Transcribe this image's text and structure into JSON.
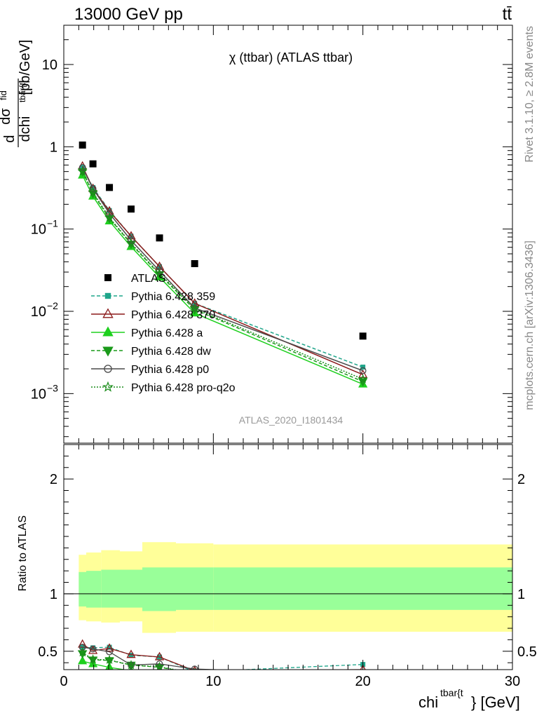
{
  "header": {
    "left": "13000 GeV pp",
    "right": "tt̄"
  },
  "side_labels": {
    "rivet": "Rivet 3.1.10, ≥ 2.8M events",
    "mcplots": "mcplots.cern.ch [arXiv:1306.3436]"
  },
  "chart_data": {
    "type": "scatter",
    "title": "χ (ttbar) (ATLAS ttbar)",
    "analysis": "ATLAS_2020_I1801434",
    "xlabel": {
      "main": "chi",
      "sup": "tbar{t",
      "tail": "} [GeV]"
    },
    "ylabel": {
      "prefix": "d",
      "num": "dσ",
      "num_sup": "fid",
      "den": "dchi",
      "den_sup": "tbar{t}",
      "unit": "[pb/GeV]"
    },
    "ratio_ylabel": "Ratio to ATLAS",
    "xlim": [
      0,
      30
    ],
    "ylim": [
      0.00025,
      30
    ],
    "yscale": "log",
    "ratio_ylim": [
      0.34,
      2.3
    ],
    "x_ticks": [
      {
        "value": 0,
        "label": "0"
      },
      {
        "value": 10,
        "label": "10"
      },
      {
        "value": 20,
        "label": "20"
      },
      {
        "value": 30,
        "label": "30"
      }
    ],
    "y_ticks": [
      {
        "value": 10,
        "label": "10",
        "sup": ""
      },
      {
        "value": 1,
        "label": "1",
        "sup": ""
      },
      {
        "value": 0.1,
        "label": "10",
        "sup": "−1"
      },
      {
        "value": 0.01,
        "label": "10",
        "sup": "−2"
      },
      {
        "value": 0.001,
        "label": "10",
        "sup": "−3"
      }
    ],
    "ratio_ticks": [
      {
        "value": 0.5,
        "label": "0.5"
      },
      {
        "value": 1,
        "label": "1"
      },
      {
        "value": 2,
        "label": "2"
      }
    ],
    "data": {
      "name": "ATLAS",
      "color": "#000000",
      "x": [
        1.25,
        1.95,
        3.05,
        4.5,
        6.4,
        8.75,
        20
      ],
      "y": [
        1.05,
        0.62,
        0.32,
        0.175,
        0.078,
        0.038,
        0.005
      ]
    },
    "bands": {
      "edges": [
        1,
        1.5,
        2.5,
        3.75,
        5.25,
        7.5,
        10,
        30
      ],
      "total_lo": [
        0.77,
        0.76,
        0.75,
        0.76,
        0.66,
        0.67,
        0.67
      ],
      "total_hi": [
        1.34,
        1.36,
        1.38,
        1.37,
        1.45,
        1.44,
        1.43
      ],
      "stat_lo": [
        0.89,
        0.88,
        0.88,
        0.88,
        0.85,
        0.86,
        0.86
      ],
      "stat_hi": [
        1.19,
        1.2,
        1.21,
        1.21,
        1.23,
        1.23,
        1.23
      ],
      "total_color": "#ffff99",
      "stat_color": "#99ff99"
    },
    "series": [
      {
        "name": "Pythia 6.428 359",
        "color": "#1fa58a",
        "dash": "5,3",
        "marker": "square",
        "x": [
          1.25,
          1.95,
          3.05,
          4.5,
          6.4,
          8.75,
          20
        ],
        "y": [
          0.56,
          0.32,
          0.168,
          0.082,
          0.035,
          0.0125,
          0.0021
        ],
        "ratio": [
          0.535,
          0.53,
          0.535,
          0.465,
          0.45,
          0.32,
          0.385
        ]
      },
      {
        "name": "Pythia 6.428 370",
        "color": "#8b1a1a",
        "dash": "",
        "marker": "triangle-open",
        "x": [
          1.25,
          1.95,
          3.05,
          4.5,
          6.4,
          8.75,
          20
        ],
        "y": [
          0.58,
          0.31,
          0.165,
          0.082,
          0.035,
          0.0125,
          0.0017
        ],
        "ratio": [
          0.56,
          0.505,
          0.525,
          0.47,
          0.45,
          0.33,
          0.34
        ]
      },
      {
        "name": "Pythia 6.428 a",
        "color": "#1ed01e",
        "dash": "",
        "marker": "triangle",
        "x": [
          1.25,
          1.95,
          3.05,
          4.5,
          6.4,
          8.75,
          20
        ],
        "y": [
          0.45,
          0.25,
          0.125,
          0.061,
          0.026,
          0.0095,
          0.0013
        ],
        "ratio": [
          0.415,
          0.39,
          0.36,
          0.33,
          0.31,
          0.28,
          0.26
        ]
      },
      {
        "name": "Pythia 6.428 dw",
        "color": "#1a9a1a",
        "dash": "5,3",
        "marker": "triangle-down",
        "x": [
          1.25,
          1.95,
          3.05,
          4.5,
          6.4,
          8.75,
          20
        ],
        "y": [
          0.5,
          0.27,
          0.135,
          0.066,
          0.028,
          0.0105,
          0.0014
        ],
        "ratio": [
          0.48,
          0.425,
          0.42,
          0.38,
          0.36,
          0.31,
          0.28
        ]
      },
      {
        "name": "Pythia 6.428 p0",
        "color": "#4a4a4a",
        "dash": "",
        "marker": "circle-open",
        "x": [
          1.25,
          1.95,
          3.05,
          4.5,
          6.4,
          8.75,
          20
        ],
        "y": [
          0.56,
          0.31,
          0.155,
          0.073,
          0.031,
          0.011,
          0.0019
        ],
        "ratio": [
          0.535,
          0.52,
          0.495,
          0.38,
          0.39,
          0.345,
          0.3
        ]
      },
      {
        "name": "Pythia 6.428 pro-q2o",
        "color": "#1a8c1a",
        "dash": "2,2",
        "marker": "star",
        "x": [
          1.25,
          1.95,
          3.05,
          4.5,
          6.4,
          8.75,
          20
        ],
        "y": [
          0.5,
          0.28,
          0.138,
          0.067,
          0.029,
          0.0108,
          0.0015
        ],
        "ratio": [
          0.49,
          0.43,
          0.425,
          0.38,
          0.365,
          0.31,
          0.29
        ]
      }
    ]
  }
}
